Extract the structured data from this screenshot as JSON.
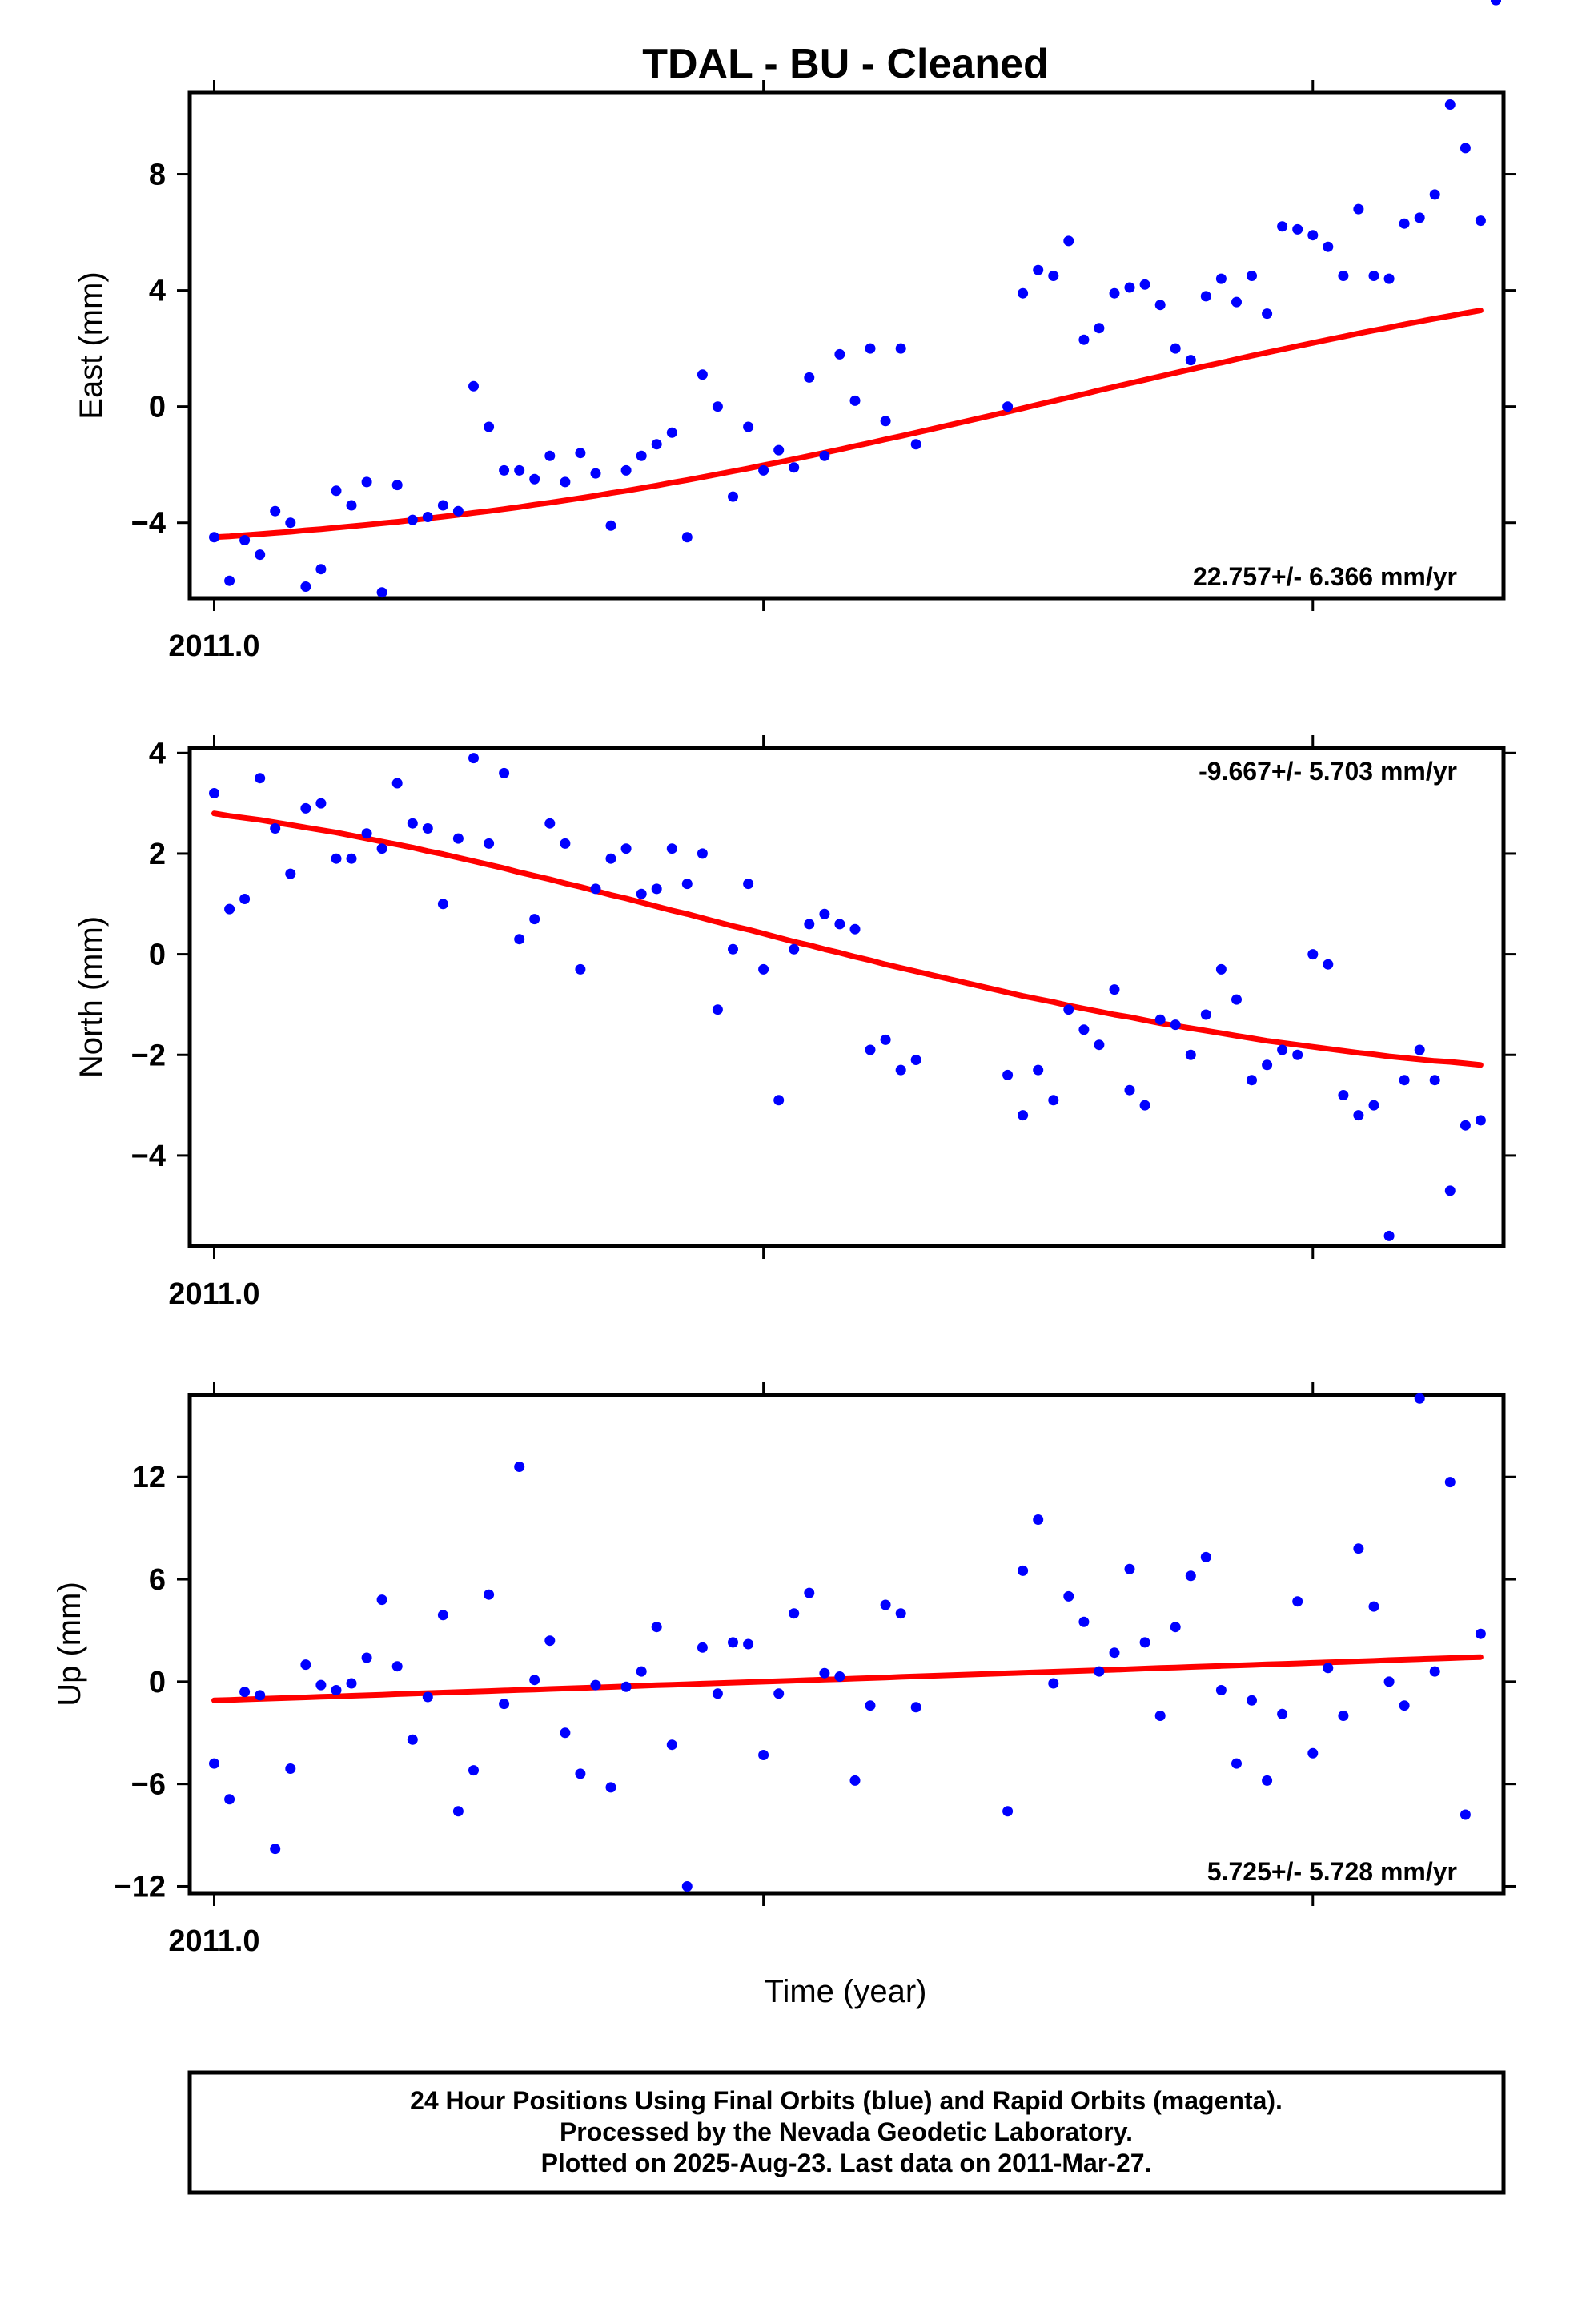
{
  "chart_data": {
    "type": "scatter",
    "title": "TDAL  - BU - Cleaned",
    "xlabel": "Time (year)",
    "x_tick_label": "2011.0",
    "xlim": [
      -1.6,
      84.5
    ],
    "x_ticks": [
      0,
      36,
      72
    ],
    "fit_color": "#ff0000",
    "final_orbits_color": "#0000ff",
    "rapid_orbits_color": "#ff00ff",
    "x": [
      0,
      1,
      2,
      3,
      4,
      5,
      6,
      7,
      8,
      9,
      10,
      11,
      12,
      13,
      14,
      15,
      16,
      17,
      18,
      19,
      20,
      21,
      22,
      23,
      24,
      25,
      26,
      27,
      28,
      29,
      30,
      31,
      32,
      33,
      34,
      35,
      36,
      37,
      38,
      39,
      40,
      41,
      42,
      43,
      44,
      45,
      46,
      52,
      53,
      54,
      55,
      56,
      57,
      58,
      59,
      60,
      61,
      62,
      63,
      64,
      65,
      66,
      67,
      68,
      69,
      70,
      71,
      72,
      73,
      74,
      75,
      76,
      77,
      78,
      79,
      80,
      81,
      82,
      83,
      84
    ],
    "panels": [
      {
        "ylabel": "East (mm)",
        "ylim": [
          -6.6,
          10.8
        ],
        "yticks": [
          -4,
          0,
          4,
          8
        ],
        "ytick_labels": [
          "−4",
          "0",
          "4",
          "8"
        ],
        "rate_text": "22.757+/- 6.366 mm/yr",
        "rate_position": "bottom-right",
        "values": [
          -4.5,
          -6.0,
          -4.6,
          -5.1,
          -3.6,
          -4.0,
          -6.2,
          -5.6,
          -2.9,
          -3.4,
          -2.6,
          -6.4,
          -2.7,
          -3.9,
          -3.8,
          -3.4,
          -3.6,
          0.7,
          -0.7,
          -2.2,
          -2.2,
          -2.5,
          -1.7,
          -2.6,
          -1.6,
          -2.3,
          -4.1,
          -2.2,
          -1.7,
          -1.3,
          -0.9,
          -4.5,
          1.1,
          0.0,
          -3.1,
          -0.7,
          -2.2,
          -1.5,
          -2.1,
          1.0,
          -1.7,
          1.8,
          0.2,
          2.0,
          -0.5,
          2.0,
          -1.3,
          0.0,
          3.9,
          4.7,
          4.5,
          5.7,
          2.3,
          2.7,
          3.9,
          4.1,
          4.2,
          3.5,
          2.0,
          1.6,
          3.8,
          4.4,
          3.6,
          4.5,
          3.2,
          6.2,
          6.1,
          5.9,
          5.5,
          4.5,
          6.8,
          4.5,
          4.4,
          6.3,
          6.5,
          7.3,
          10.4,
          8.9,
          6.4
        ],
        "fit_values": [
          -4.5,
          -4.47,
          -4.43,
          -4.39,
          -4.35,
          -4.31,
          -4.26,
          -4.22,
          -4.17,
          -4.12,
          -4.07,
          -4.02,
          -3.97,
          -3.91,
          -3.85,
          -3.79,
          -3.73,
          -3.66,
          -3.6,
          -3.53,
          -3.46,
          -3.38,
          -3.31,
          -3.23,
          -3.15,
          -3.07,
          -2.98,
          -2.9,
          -2.81,
          -2.72,
          -2.62,
          -2.53,
          -2.43,
          -2.33,
          -2.23,
          -2.13,
          -2.02,
          -1.92,
          -1.81,
          -1.7,
          -1.59,
          -1.48,
          -1.36,
          -1.25,
          -1.13,
          -1.02,
          -0.9,
          -0.18,
          -0.06,
          0.07,
          0.19,
          0.31,
          0.43,
          0.56,
          0.68,
          0.8,
          0.92,
          1.04,
          1.16,
          1.28,
          1.4,
          1.51,
          1.63,
          1.75,
          1.86,
          1.97,
          2.08,
          2.19,
          2.3,
          2.41,
          2.52,
          2.62,
          2.72,
          2.83,
          2.93,
          3.03,
          3.12,
          3.22,
          3.31
        ]
      },
      {
        "ylabel": "North (mm)",
        "ylim": [
          -5.8,
          4.1
        ],
        "yticks": [
          -4,
          -2,
          0,
          2,
          4
        ],
        "ytick_labels": [
          "−4",
          "−2",
          "0",
          "2",
          "4"
        ],
        "rate_text": "-9.667+/- 5.703 mm/yr",
        "rate_position": "top-right",
        "values": [
          3.2,
          0.9,
          1.1,
          3.5,
          2.5,
          1.6,
          2.9,
          3.0,
          1.9,
          1.9,
          2.4,
          2.1,
          3.4,
          2.6,
          2.5,
          1.0,
          2.3,
          3.9,
          2.2,
          3.6,
          0.3,
          0.7,
          2.6,
          2.2,
          -0.3,
          1.3,
          1.9,
          2.1,
          1.2,
          1.3,
          2.1,
          1.4,
          2.0,
          -1.1,
          0.1,
          1.4,
          -0.3,
          -2.9,
          0.1,
          0.6,
          0.8,
          0.6,
          0.5,
          -1.9,
          -1.7,
          -2.3,
          -2.1,
          -2.4,
          -3.2,
          -2.3,
          -2.9,
          -1.1,
          -1.5,
          -1.8,
          -0.7,
          -2.7,
          -3.0,
          -1.3,
          -1.4,
          -2.0,
          -1.2,
          -0.3,
          -0.9,
          -2.5,
          -2.2,
          -1.9,
          -2.0,
          0.0,
          -0.2,
          -2.8,
          -3.2,
          -3.0,
          -5.6,
          -2.5,
          -1.9,
          -2.5,
          -4.7,
          -3.4,
          -3.3
        ],
        "fit_values": [
          2.8,
          2.75,
          2.71,
          2.67,
          2.62,
          2.57,
          2.52,
          2.47,
          2.42,
          2.36,
          2.3,
          2.24,
          2.18,
          2.12,
          2.05,
          1.99,
          1.92,
          1.85,
          1.78,
          1.71,
          1.63,
          1.56,
          1.49,
          1.41,
          1.34,
          1.26,
          1.18,
          1.11,
          1.03,
          0.95,
          0.87,
          0.8,
          0.72,
          0.64,
          0.56,
          0.49,
          0.41,
          0.33,
          0.25,
          0.18,
          0.1,
          0.03,
          -0.05,
          -0.12,
          -0.2,
          -0.27,
          -0.34,
          -0.76,
          -0.83,
          -0.89,
          -0.95,
          -1.02,
          -1.08,
          -1.14,
          -1.2,
          -1.25,
          -1.31,
          -1.37,
          -1.42,
          -1.47,
          -1.52,
          -1.57,
          -1.62,
          -1.67,
          -1.72,
          -1.76,
          -1.8,
          -1.84,
          -1.88,
          -1.92,
          -1.96,
          -1.99,
          -2.03,
          -2.06,
          -2.09,
          -2.12,
          -2.14,
          -2.17,
          -2.2
        ]
      },
      {
        "ylabel": "Up (mm)",
        "ylim": [
          -12.4,
          16.8
        ],
        "yticks": [
          -12,
          -6,
          0,
          6,
          12
        ],
        "ytick_labels": [
          "−12",
          "−6",
          "0",
          "6",
          "12"
        ],
        "rate_text": "5.725+/- 5.728 mm/yr",
        "rate_position": "bottom-right",
        "values": [
          -4.8,
          -6.9,
          -0.6,
          -0.8,
          -9.8,
          -5.1,
          1.0,
          -0.2,
          -0.5,
          -0.1,
          1.4,
          4.8,
          0.9,
          -3.4,
          -0.9,
          3.9,
          -7.6,
          -5.2,
          5.1,
          -1.3,
          12.6,
          0.1,
          2.4,
          -3.0,
          -5.4,
          -0.2,
          -6.2,
          -0.3,
          0.6,
          3.2,
          -3.7,
          -12.0,
          2.0,
          -0.7,
          2.3,
          2.2,
          -4.3,
          -0.7,
          4.0,
          5.2,
          0.5,
          0.3,
          -5.8,
          -1.4,
          4.5,
          4.0,
          -1.5,
          -7.6,
          6.5,
          9.5,
          -0.1,
          5.0,
          3.5,
          0.6,
          1.7,
          6.6,
          2.3,
          -2.0,
          3.2,
          6.2,
          7.3,
          -0.5,
          -4.8,
          -1.1,
          -5.8,
          -1.9,
          4.7,
          -4.2,
          0.8,
          -2.0,
          7.8,
          4.4,
          0.0,
          -1.4,
          16.6,
          0.6,
          11.7,
          -7.8,
          2.8
        ],
        "fit_values": [
          -1.1,
          -1.07,
          -1.04,
          -1.01,
          -0.98,
          -0.95,
          -0.92,
          -0.89,
          -0.86,
          -0.83,
          -0.8,
          -0.77,
          -0.73,
          -0.7,
          -0.67,
          -0.64,
          -0.61,
          -0.58,
          -0.55,
          -0.52,
          -0.49,
          -0.46,
          -0.43,
          -0.4,
          -0.37,
          -0.34,
          -0.31,
          -0.28,
          -0.24,
          -0.21,
          -0.18,
          -0.15,
          -0.12,
          -0.09,
          -0.06,
          -0.03,
          0.0,
          0.03,
          0.06,
          0.09,
          0.12,
          0.15,
          0.18,
          0.21,
          0.24,
          0.28,
          0.31,
          0.49,
          0.52,
          0.55,
          0.58,
          0.61,
          0.64,
          0.67,
          0.7,
          0.73,
          0.77,
          0.8,
          0.83,
          0.86,
          0.89,
          0.92,
          0.95,
          0.98,
          1.01,
          1.04,
          1.07,
          1.1,
          1.13,
          1.16,
          1.19,
          1.22,
          1.26,
          1.29,
          1.32,
          1.35,
          1.38,
          1.41,
          1.44
        ]
      }
    ]
  },
  "footer": {
    "lines": [
      "24 Hour Positions Using Final Orbits (blue) and Rapid Orbits (magenta).",
      "Processed by the Nevada Geodetic Laboratory.",
      "Plotted on 2025-Aug-23. Last data on 2011-Mar-27."
    ]
  }
}
